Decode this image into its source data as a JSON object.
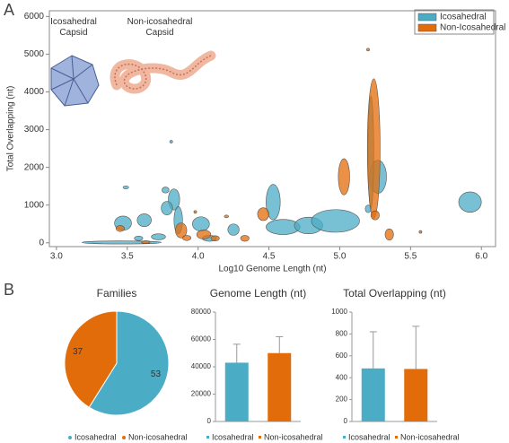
{
  "chart_data": [
    {
      "type": "bubble",
      "panel_label": "A",
      "xlabel": "Log10 Genome Length (nt)",
      "ylabel": "Total Overlapping (nt)",
      "xlim": [
        2.95,
        6.1
      ],
      "ylim": [
        -100,
        6150
      ],
      "xticks": [
        {
          "value": 3,
          "label": "3.0"
        },
        3.5,
        {
          "value": 4,
          "label": "4.0"
        },
        4.5,
        {
          "value": 5,
          "label": "5.0"
        },
        5.5,
        {
          "value": 6,
          "label": "6.0"
        }
      ],
      "yticks": [
        0,
        1000,
        2000,
        3000,
        4000,
        5000,
        6000
      ],
      "legend": "upper right",
      "inset_labels": [
        "Icosahedral Capsid",
        "Non-icosahedral Capsid"
      ],
      "series": [
        {
          "name": "Icosahedral",
          "color": "#4bacc6",
          "x": [
            3.46,
            3.47,
            3.49,
            3.62,
            3.77,
            3.83,
            3.78,
            3.86,
            3.81,
            4.02,
            4.08,
            3.58,
            3.72,
            4.53,
            4.6,
            4.78,
            4.97,
            5.27,
            5.22,
            5.92,
            4.25,
            5.2
          ],
          "values": [
            10,
            520,
            1470,
            600,
            1400,
            1150,
            920,
            600,
            2680,
            500,
            120,
            120,
            160,
            1080,
            420,
            460,
            580,
            1750,
            2400,
            1080,
            350,
            900
          ],
          "x_spread": [
            0.28,
            0.06,
            0.02,
            0.05,
            0.025,
            0.04,
            0.04,
            0.03,
            0.01,
            0.06,
            0.05,
            0.03,
            0.05,
            0.05,
            0.12,
            0.1,
            0.17,
            0.06,
            0.02,
            0.08,
            0.04,
            0.02
          ],
          "y_spread": [
            40,
            190,
            40,
            170,
            80,
            280,
            180,
            360,
            30,
            190,
            80,
            60,
            80,
            470,
            200,
            220,
            300,
            440,
            1500,
            270,
            150,
            100
          ]
        },
        {
          "name": "Non-Icosahedral",
          "color": "#e36c0a",
          "x": [
            3.45,
            3.63,
            3.88,
            3.92,
            4.04,
            4.2,
            4.12,
            4.33,
            4.46,
            5.03,
            5.24,
            5.2,
            5.35,
            5.25,
            5.57,
            3.98
          ],
          "values": [
            380,
            20,
            330,
            130,
            220,
            700,
            120,
            120,
            760,
            1750,
            2500,
            5120,
            220,
            730,
            290,
            820
          ],
          "x_spread": [
            0.03,
            0.03,
            0.04,
            0.03,
            0.05,
            0.015,
            0.03,
            0.03,
            0.04,
            0.04,
            0.045,
            0.01,
            0.03,
            0.03,
            0.01,
            0.01
          ],
          "y_spread": [
            80,
            30,
            200,
            70,
            120,
            30,
            70,
            80,
            170,
            480,
            1850,
            30,
            150,
            120,
            30,
            30
          ]
        }
      ]
    },
    {
      "type": "pie",
      "panel_label": "B",
      "title": "Families",
      "categories": [
        "Icosahedral",
        "Non-icosahedral"
      ],
      "values": [
        53,
        37
      ],
      "colors": [
        "#4bacc6",
        "#e36c0a"
      ]
    },
    {
      "type": "bar",
      "title": "Genome Length (nt)",
      "categories": [
        "Icosahedral",
        "Non-icosahedral"
      ],
      "values": [
        43000,
        50000
      ],
      "errors": [
        13500,
        12000
      ],
      "colors": [
        "#4bacc6",
        "#e36c0a"
      ],
      "ylim": [
        0,
        80000
      ],
      "yticks": [
        0,
        20000,
        40000,
        60000,
        80000
      ]
    },
    {
      "type": "bar",
      "title": "Total Overlapping (nt)",
      "categories": [
        "Icosahedral",
        "Non-icosahedral"
      ],
      "values": [
        485,
        480
      ],
      "errors": [
        335,
        390
      ],
      "colors": [
        "#4bacc6",
        "#e36c0a"
      ],
      "ylim": [
        0,
        1000
      ],
      "yticks": [
        0,
        200,
        400,
        600,
        800,
        1000
      ]
    }
  ]
}
